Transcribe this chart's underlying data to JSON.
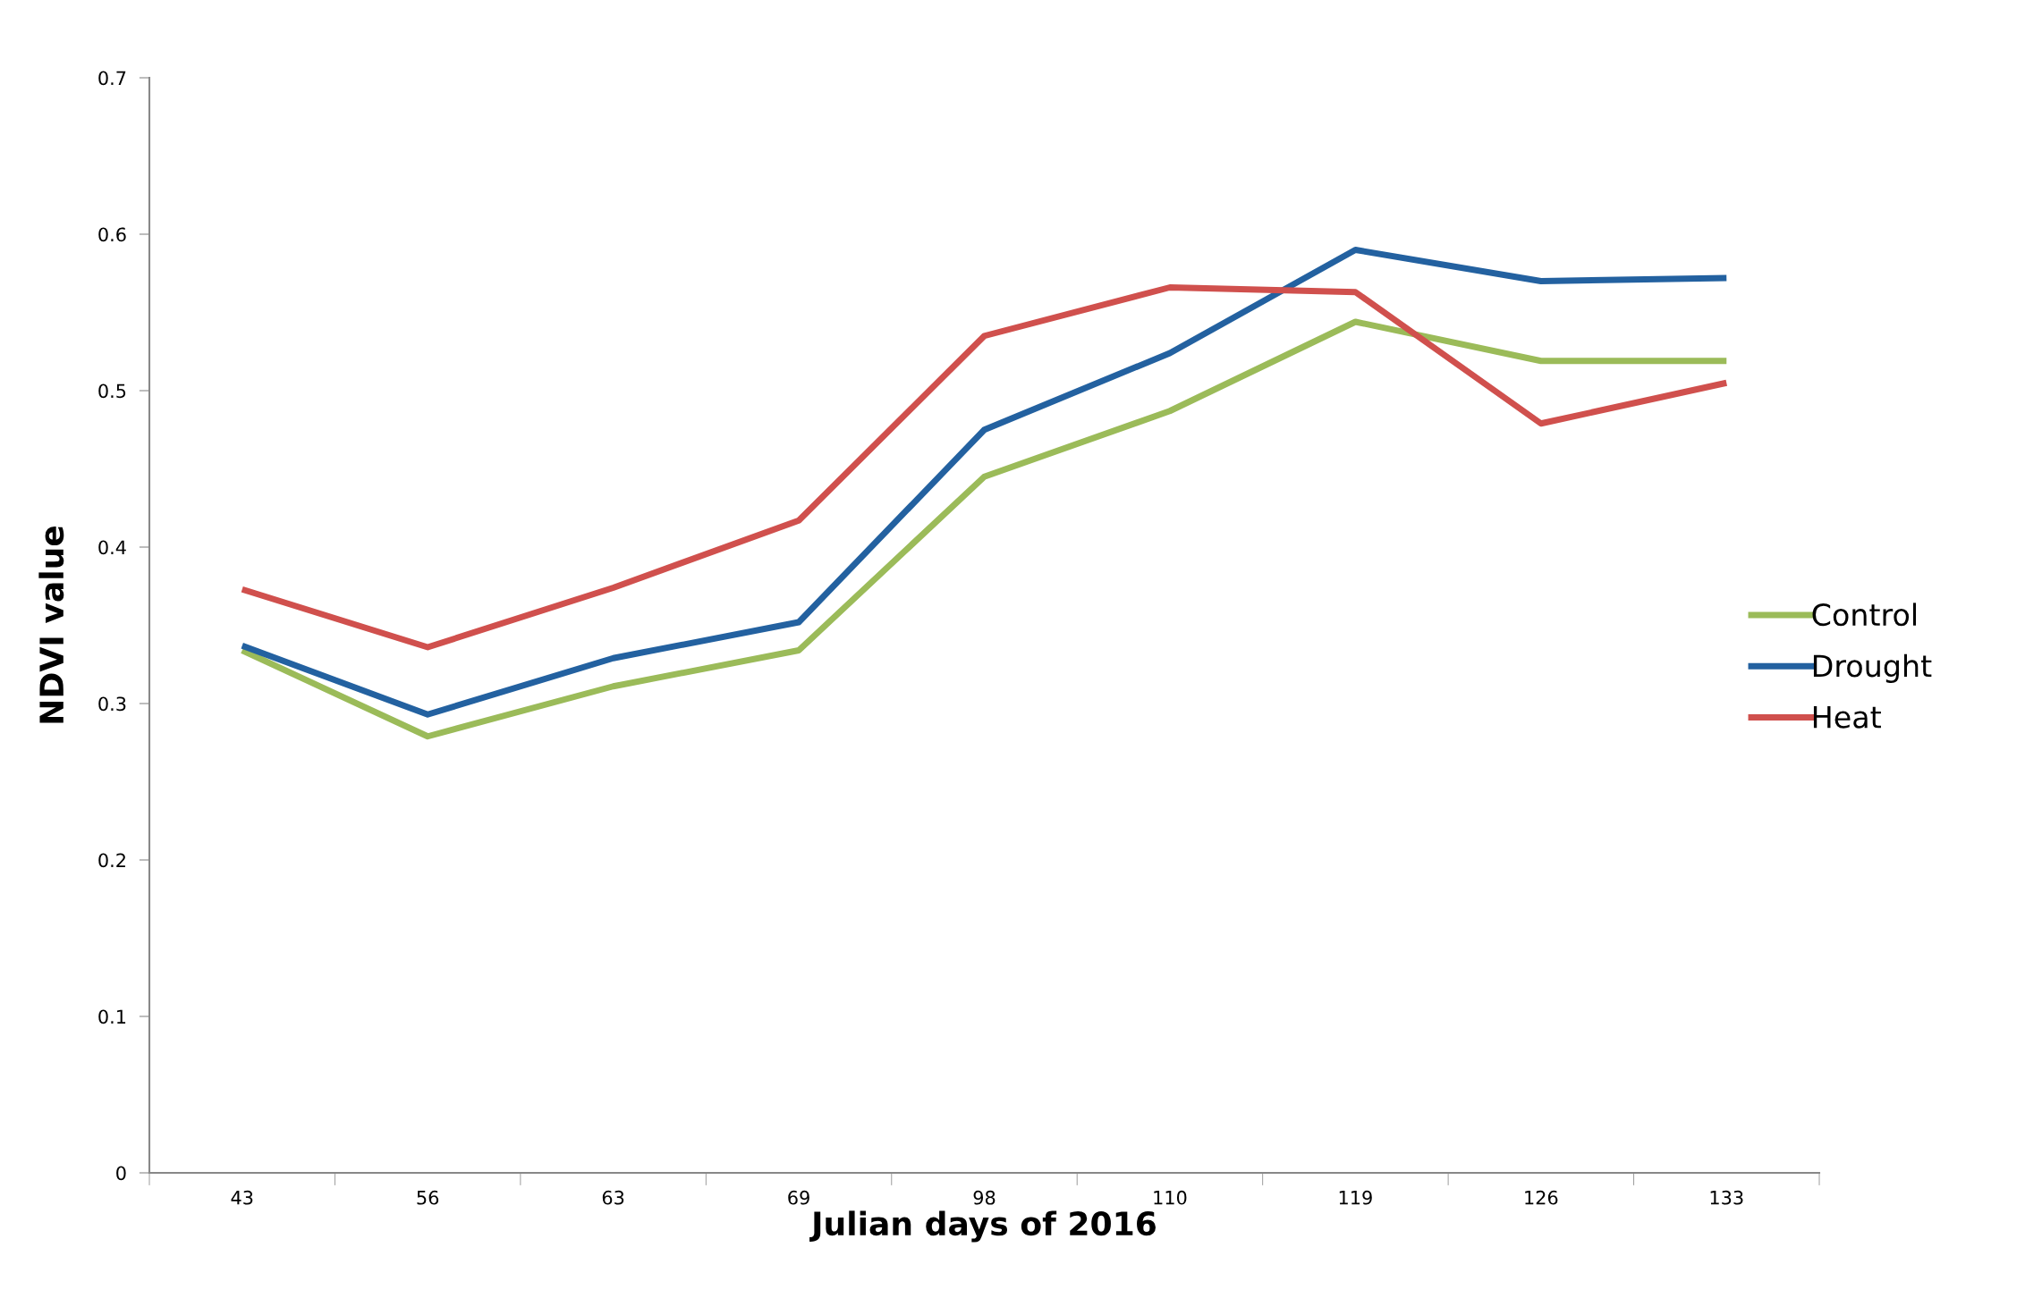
{
  "chart_data": {
    "type": "line",
    "xlabel": "Julian days of 2016",
    "ylabel": "NDVI value",
    "categories": [
      "43",
      "56",
      "63",
      "69",
      "98",
      "110",
      "119",
      "126",
      "133"
    ],
    "series": [
      {
        "name": "Control",
        "color": "#9bbb59",
        "values": [
          0.334,
          0.279,
          0.311,
          0.334,
          0.445,
          0.487,
          0.544,
          0.519,
          0.519
        ]
      },
      {
        "name": "Drought",
        "color": "#2361a0",
        "values": [
          0.337,
          0.293,
          0.329,
          0.352,
          0.475,
          0.524,
          0.59,
          0.57,
          0.572
        ]
      },
      {
        "name": "Heat",
        "color": "#d0504d",
        "values": [
          0.373,
          0.336,
          0.374,
          0.417,
          0.535,
          0.566,
          0.563,
          0.479,
          0.505
        ]
      }
    ],
    "ylim": [
      0,
      0.7
    ],
    "yticks": [
      0,
      0.1,
      0.2,
      0.3,
      0.4,
      0.5,
      0.6,
      0.7
    ],
    "grid": false,
    "legend": "right",
    "marker": "none",
    "line_style": "solid"
  }
}
